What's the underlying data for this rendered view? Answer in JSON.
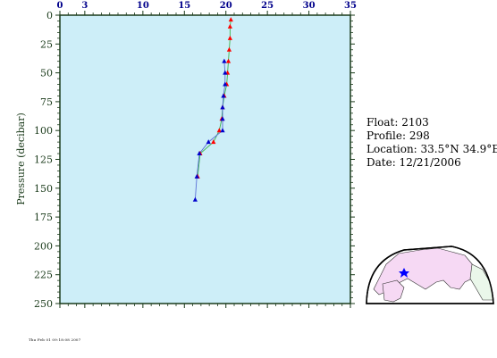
{
  "chart_data": {
    "type": "line",
    "x_ticks": [
      0,
      3,
      10,
      15,
      20,
      25,
      30,
      35
    ],
    "x_tick_labels": [
      "0",
      "3",
      "10",
      "15",
      "20",
      "25",
      "30",
      "35"
    ],
    "y_ticks": [
      0,
      25,
      50,
      75,
      100,
      125,
      150,
      175,
      200,
      225,
      250
    ],
    "xlim": [
      0,
      35
    ],
    "ylim": [
      0,
      250
    ],
    "ylabel": "Pressure (decibar)",
    "series": [
      {
        "color": "#ff0000",
        "marker": "triangle",
        "points": [
          [
            20.6,
            4
          ],
          [
            20.5,
            10
          ],
          [
            20.5,
            20
          ],
          [
            20.4,
            30
          ],
          [
            20.3,
            40
          ],
          [
            20.2,
            50
          ],
          [
            20.1,
            60
          ],
          [
            19.8,
            70
          ],
          [
            19.6,
            80
          ],
          [
            19.5,
            90
          ],
          [
            19.2,
            100
          ],
          [
            18.5,
            110
          ],
          [
            16.9,
            120
          ],
          [
            16.6,
            140
          ]
        ]
      },
      {
        "color": "#0000cc",
        "marker": "triangle",
        "points": [
          [
            19.8,
            40
          ],
          [
            19.9,
            50
          ],
          [
            19.9,
            60
          ],
          [
            19.7,
            70
          ],
          [
            19.6,
            80
          ],
          [
            19.6,
            90
          ],
          [
            19.6,
            100
          ],
          [
            17.9,
            110
          ],
          [
            16.8,
            120
          ],
          [
            16.5,
            140
          ],
          [
            16.3,
            160
          ]
        ]
      }
    ]
  },
  "info": {
    "float": "Float:  2103",
    "profile": "Profile:  298",
    "location": "Location:  33.5°N  34.9°E",
    "date": "Date:  12/21/2006"
  },
  "footer_text": "Thu Feb 01 09:18:08 2007",
  "colors": {
    "plot_bg": "#cdeef8",
    "axis": "#1a3a1a",
    "tick_label": "#00008b",
    "map_land": "#f6d9f4",
    "map_land_alt": "#eaf7ea"
  }
}
